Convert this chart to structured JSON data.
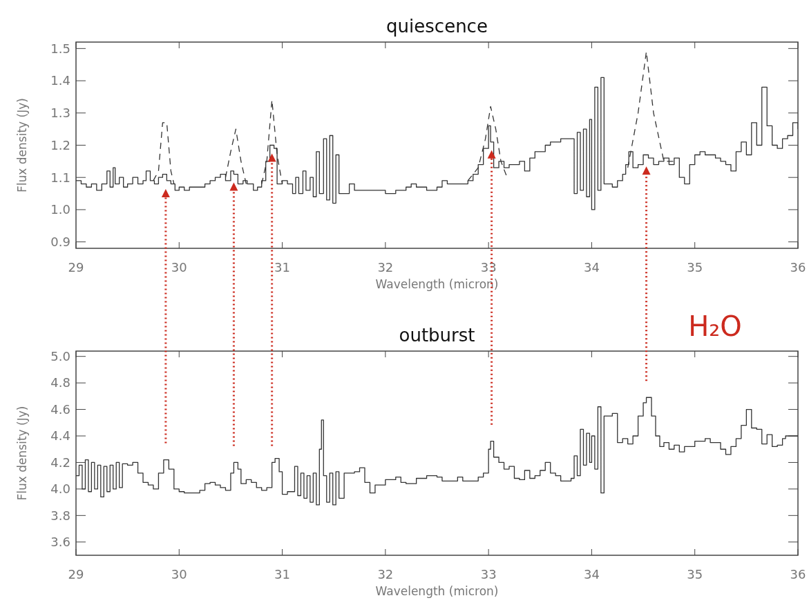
{
  "chart_data": [
    {
      "type": "step",
      "title": "quiescence",
      "xlabel": "Wavelength (micron)",
      "ylabel": "Flux density (Jy)",
      "xlim": [
        29,
        36
      ],
      "xticks": [
        29,
        30,
        31,
        32,
        33,
        34,
        35,
        36
      ],
      "ylim": [
        0.88,
        1.52
      ],
      "yticks": [
        0.9,
        {
          "value": 1,
          "label": "1.0"
        },
        1.1,
        1.2,
        1.3,
        1.4,
        1.5
      ],
      "series": [
        {
          "type": "step",
          "color": "#333333",
          "line_style": "solid",
          "x": [
            29.0,
            29.05,
            29.1,
            29.15,
            29.2,
            29.25,
            29.3,
            29.33,
            29.36,
            29.38,
            29.42,
            29.46,
            29.5,
            29.55,
            29.6,
            29.65,
            29.68,
            29.72,
            29.76,
            29.8,
            29.84,
            29.88,
            29.92,
            29.96,
            30.0,
            30.05,
            30.1,
            30.2,
            30.25,
            30.3,
            30.35,
            30.4,
            30.45,
            30.5,
            30.53,
            30.57,
            30.62,
            30.66,
            30.72,
            30.76,
            30.8,
            30.84,
            30.88,
            30.92,
            30.95,
            31.0,
            31.05,
            31.1,
            31.13,
            31.16,
            31.2,
            31.23,
            31.27,
            31.3,
            31.33,
            31.36,
            31.4,
            31.43,
            31.46,
            31.49,
            31.52,
            31.55,
            31.6,
            31.65,
            31.7,
            31.8,
            31.9,
            32.0,
            32.1,
            32.2,
            32.25,
            32.3,
            32.4,
            32.5,
            32.55,
            32.6,
            32.7,
            32.8,
            32.85,
            32.9,
            32.95,
            33.0,
            33.02,
            33.05,
            33.1,
            33.15,
            33.2,
            33.3,
            33.35,
            33.4,
            33.45,
            33.5,
            33.55,
            33.6,
            33.65,
            33.7,
            33.75,
            33.8,
            33.83,
            33.86,
            33.89,
            33.92,
            33.95,
            33.98,
            34.0,
            34.03,
            34.06,
            34.09,
            34.12,
            34.2,
            34.25,
            34.3,
            34.33,
            34.36,
            34.4,
            34.45,
            34.5,
            34.55,
            34.6,
            34.65,
            34.7,
            34.75,
            34.8,
            34.85,
            34.9,
            34.95,
            35.0,
            35.05,
            35.1,
            35.2,
            35.25,
            35.3,
            35.35,
            35.4,
            35.45,
            35.5,
            35.55,
            35.6,
            35.65,
            35.7,
            35.75,
            35.8,
            35.85,
            35.9,
            35.95,
            36.0
          ],
          "values": [
            1.09,
            1.08,
            1.07,
            1.08,
            1.06,
            1.08,
            1.12,
            1.07,
            1.13,
            1.08,
            1.1,
            1.07,
            1.08,
            1.1,
            1.08,
            1.09,
            1.12,
            1.09,
            1.08,
            1.1,
            1.11,
            1.09,
            1.08,
            1.06,
            1.07,
            1.06,
            1.07,
            1.07,
            1.08,
            1.09,
            1.1,
            1.11,
            1.09,
            1.12,
            1.11,
            1.08,
            1.09,
            1.08,
            1.06,
            1.07,
            1.09,
            1.15,
            1.2,
            1.19,
            1.08,
            1.09,
            1.08,
            1.05,
            1.1,
            1.05,
            1.12,
            1.06,
            1.1,
            1.04,
            1.18,
            1.05,
            1.22,
            1.03,
            1.23,
            1.02,
            1.17,
            1.05,
            1.05,
            1.08,
            1.06,
            1.06,
            1.06,
            1.05,
            1.06,
            1.07,
            1.08,
            1.07,
            1.06,
            1.07,
            1.09,
            1.08,
            1.08,
            1.09,
            1.11,
            1.14,
            1.19,
            1.26,
            1.21,
            1.13,
            1.15,
            1.13,
            1.14,
            1.15,
            1.12,
            1.16,
            1.18,
            1.18,
            1.2,
            1.21,
            1.21,
            1.22,
            1.22,
            1.22,
            1.05,
            1.24,
            1.06,
            1.25,
            1.04,
            1.28,
            1.0,
            1.38,
            1.06,
            1.41,
            1.08,
            1.07,
            1.09,
            1.11,
            1.14,
            1.18,
            1.13,
            1.14,
            1.17,
            1.16,
            1.14,
            1.15,
            1.16,
            1.14,
            1.16,
            1.1,
            1.08,
            1.14,
            1.17,
            1.18,
            1.17,
            1.16,
            1.15,
            1.14,
            1.12,
            1.18,
            1.21,
            1.17,
            1.27,
            1.2,
            1.38,
            1.26,
            1.2,
            1.19,
            1.22,
            1.23,
            1.27,
            1.25
          ]
        },
        {
          "type": "line",
          "color": "#333333",
          "line_style": "dashed",
          "x": [
            29.75,
            29.8,
            29.84,
            29.88,
            29.92,
            29.95,
            30.0,
            30.45,
            30.5,
            30.55,
            30.6,
            30.65,
            30.7,
            30.8,
            30.85,
            30.9,
            30.95,
            31.0,
            31.05,
            32.8,
            32.9,
            32.97,
            33.02,
            33.07,
            33.12,
            33.18,
            34.2,
            34.35,
            34.45,
            34.53,
            34.6,
            34.7,
            34.8
          ],
          "values": [
            1.09,
            1.12,
            1.27,
            1.27,
            1.12,
            1.08,
            null,
            1.1,
            1.18,
            1.25,
            1.15,
            1.08,
            null,
            1.08,
            1.15,
            1.34,
            1.17,
            1.08,
            null,
            1.09,
            1.13,
            1.22,
            1.32,
            1.25,
            1.15,
            1.1,
            null,
            1.13,
            1.3,
            1.49,
            1.3,
            1.15,
            1.15
          ]
        }
      ],
      "ref_lines": [
        {
          "axis": "x",
          "value": 29.87,
          "color": "#cc2a1e",
          "line_style": "dotted"
        },
        {
          "axis": "x",
          "value": 30.53,
          "color": "#cc2a1e",
          "line_style": "dotted"
        },
        {
          "axis": "x",
          "value": 30.9,
          "color": "#cc2a1e",
          "line_style": "dotted"
        },
        {
          "axis": "x",
          "value": 33.03,
          "color": "#cc2a1e",
          "line_style": "dotted"
        },
        {
          "axis": "x",
          "value": 34.53,
          "color": "#cc2a1e",
          "line_style": "dotted"
        }
      ]
    },
    {
      "type": "step",
      "title": "outburst",
      "xlabel": "Wavelength (micron)",
      "ylabel": "Flux density (Jy)",
      "xlim": [
        29,
        36
      ],
      "xticks": [
        29,
        30,
        31,
        32,
        33,
        34,
        35,
        36
      ],
      "ylim": [
        3.5,
        5.04
      ],
      "yticks": [
        3.6,
        3.8,
        {
          "value": 4,
          "label": "4.0"
        },
        4.2,
        4.4,
        4.6,
        4.8,
        {
          "value": 5,
          "label": "5.0"
        }
      ],
      "annotations": [
        "H₂O"
      ],
      "series": [
        {
          "type": "step",
          "color": "#333333",
          "line_style": "solid",
          "x": [
            29.0,
            29.03,
            29.06,
            29.09,
            29.12,
            29.15,
            29.18,
            29.21,
            29.24,
            29.27,
            29.3,
            29.33,
            29.36,
            29.39,
            29.42,
            29.45,
            29.5,
            29.55,
            29.6,
            29.65,
            29.7,
            29.75,
            29.8,
            29.85,
            29.9,
            29.95,
            30.0,
            30.05,
            30.1,
            30.2,
            30.25,
            30.3,
            30.35,
            30.4,
            30.45,
            30.5,
            30.53,
            30.57,
            30.6,
            30.65,
            30.7,
            30.75,
            30.8,
            30.85,
            30.9,
            30.93,
            30.97,
            31.0,
            31.05,
            31.1,
            31.12,
            31.15,
            31.18,
            31.21,
            31.24,
            31.27,
            31.3,
            31.33,
            31.36,
            31.38,
            31.4,
            31.43,
            31.46,
            31.49,
            31.52,
            31.55,
            31.6,
            31.7,
            31.75,
            31.8,
            31.85,
            31.9,
            32.0,
            32.1,
            32.15,
            32.2,
            32.3,
            32.4,
            32.5,
            32.55,
            32.6,
            32.7,
            32.75,
            32.8,
            32.9,
            32.95,
            33.0,
            33.02,
            33.05,
            33.1,
            33.15,
            33.2,
            33.25,
            33.3,
            33.35,
            33.4,
            33.45,
            33.5,
            33.55,
            33.6,
            33.65,
            33.7,
            33.8,
            33.83,
            33.86,
            33.89,
            33.92,
            33.95,
            33.98,
            34.0,
            34.03,
            34.06,
            34.09,
            34.12,
            34.2,
            34.25,
            34.3,
            34.35,
            34.4,
            34.45,
            34.5,
            34.53,
            34.58,
            34.62,
            34.66,
            34.7,
            34.75,
            34.8,
            34.85,
            34.9,
            35.0,
            35.1,
            35.15,
            35.25,
            35.3,
            35.35,
            35.4,
            35.45,
            35.5,
            35.55,
            35.6,
            35.65,
            35.7,
            35.75,
            35.8,
            35.85,
            35.88,
            36.0
          ],
          "values": [
            4.1,
            4.18,
            4.0,
            4.22,
            3.98,
            4.2,
            4.0,
            4.18,
            3.94,
            4.17,
            3.98,
            4.18,
            4.0,
            4.2,
            4.01,
            4.19,
            4.18,
            4.2,
            4.12,
            4.05,
            4.03,
            4.0,
            4.12,
            4.22,
            4.15,
            4.0,
            3.98,
            3.97,
            3.97,
            3.99,
            4.04,
            4.05,
            4.03,
            4.01,
            3.99,
            4.12,
            4.2,
            4.15,
            4.04,
            4.07,
            4.05,
            4.01,
            3.99,
            4.01,
            4.2,
            4.23,
            4.13,
            3.96,
            3.98,
            3.98,
            4.17,
            3.95,
            4.12,
            3.93,
            4.1,
            3.9,
            4.12,
            3.88,
            4.3,
            4.52,
            4.1,
            3.9,
            4.12,
            3.88,
            4.13,
            3.93,
            4.12,
            4.13,
            4.16,
            4.05,
            3.97,
            4.03,
            4.07,
            4.09,
            4.05,
            4.04,
            4.08,
            4.1,
            4.09,
            4.06,
            4.06,
            4.09,
            4.06,
            4.06,
            4.09,
            4.12,
            4.3,
            4.36,
            4.24,
            4.2,
            4.15,
            4.17,
            4.08,
            4.07,
            4.14,
            4.08,
            4.1,
            4.14,
            4.2,
            4.12,
            4.1,
            4.06,
            4.08,
            4.25,
            4.1,
            4.45,
            4.18,
            4.42,
            4.2,
            4.4,
            4.15,
            4.62,
            3.97,
            4.55,
            4.57,
            4.35,
            4.38,
            4.34,
            4.4,
            4.55,
            4.65,
            4.69,
            4.55,
            4.4,
            4.32,
            4.35,
            4.3,
            4.33,
            4.28,
            4.32,
            4.36,
            4.38,
            4.35,
            4.3,
            4.26,
            4.32,
            4.38,
            4.48,
            4.6,
            4.46,
            4.45,
            4.34,
            4.41,
            4.32,
            4.33,
            4.38,
            4.4,
            4.4
          ]
        }
      ]
    }
  ]
}
